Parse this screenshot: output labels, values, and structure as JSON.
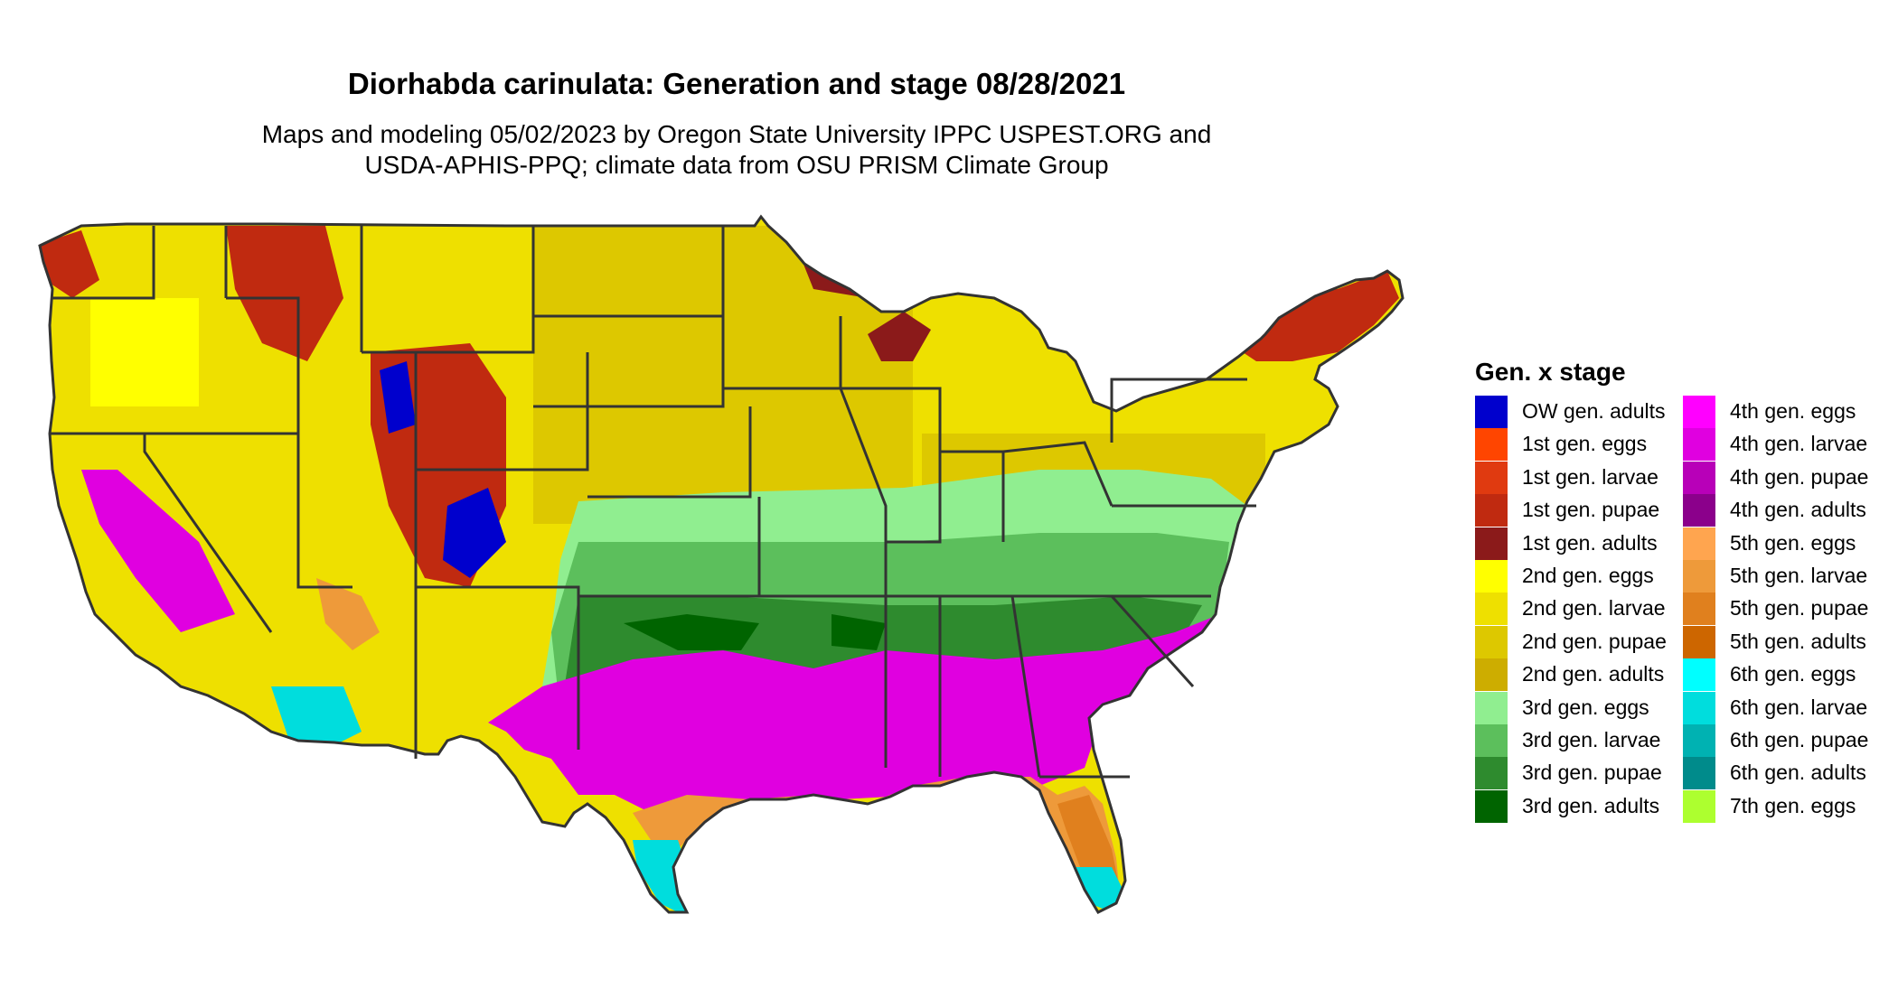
{
  "title": "Diorhabda carinulata: Generation and stage 08/28/2021",
  "subtitle": [
    "Maps and modeling 05/02/2023 by Oregon State University IPPC USPEST.ORG and",
    "USDA-APHIS-PPQ; climate data from OSU PRISM Climate Group"
  ],
  "legend": {
    "title": "Gen. x stage",
    "columns": [
      [
        {
          "label": "OW gen. adults",
          "color": "#0000CD"
        },
        {
          "label": "1st gen. eggs",
          "color": "#FF4500"
        },
        {
          "label": "1st gen. larvae",
          "color": "#E03A10"
        },
        {
          "label": "1st gen. pupae",
          "color": "#C02A10"
        },
        {
          "label": "1st gen. adults",
          "color": "#8B1A1A"
        },
        {
          "label": "2nd gen. eggs",
          "color": "#FFFF00"
        },
        {
          "label": "2nd gen. larvae",
          "color": "#EEE000"
        },
        {
          "label": "2nd gen. pupae",
          "color": "#DDC800"
        },
        {
          "label": "2nd gen. adults",
          "color": "#CDAD00"
        },
        {
          "label": "3rd gen. eggs",
          "color": "#90EE90"
        },
        {
          "label": "3rd gen. larvae",
          "color": "#5CBF5C"
        },
        {
          "label": "3rd gen. pupae",
          "color": "#2E8B2E"
        },
        {
          "label": "3rd gen. adults",
          "color": "#006400"
        }
      ],
      [
        {
          "label": "4th gen. eggs",
          "color": "#FF00FF"
        },
        {
          "label": "4th gen. larvae",
          "color": "#E000E0"
        },
        {
          "label": "4th gen. pupae",
          "color": "#B800B8"
        },
        {
          "label": "4th gen. adults",
          "color": "#8B008B"
        },
        {
          "label": "5th gen. eggs",
          "color": "#FFA54F"
        },
        {
          "label": "5th gen. larvae",
          "color": "#EE9A3A"
        },
        {
          "label": "5th gen. pupae",
          "color": "#E0801E"
        },
        {
          "label": "5th gen. adults",
          "color": "#CD6600"
        },
        {
          "label": "6th gen. eggs",
          "color": "#00FFFF"
        },
        {
          "label": "6th gen. larvae",
          "color": "#00DDDD"
        },
        {
          "label": "6th gen. pupae",
          "color": "#00B2B2"
        },
        {
          "label": "6th gen. adults",
          "color": "#008B8B"
        },
        {
          "label": "7th gen. eggs",
          "color": "#ADFF2F"
        }
      ]
    ]
  },
  "map": {
    "border_color": "#333333"
  }
}
